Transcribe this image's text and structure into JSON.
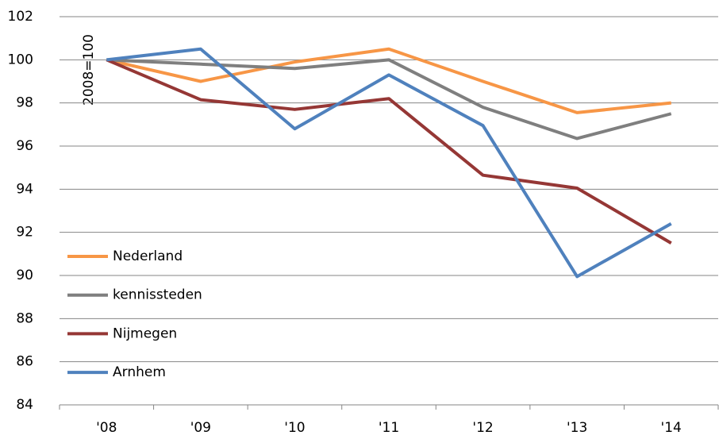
{
  "chart_data": {
    "type": "line",
    "annotation": "2008=100",
    "categories": [
      "'08",
      "'09",
      "'10",
      "'11",
      "'12",
      "'13",
      "'14"
    ],
    "series": [
      {
        "name": "Nederland",
        "color": "#f79646",
        "values": [
          100,
          99.0,
          99.9,
          100.5,
          99.0,
          97.55,
          98.0
        ]
      },
      {
        "name": "kennissteden",
        "color": "#7f7f7f",
        "values": [
          100,
          99.8,
          99.6,
          100.0,
          97.8,
          96.35,
          97.5
        ]
      },
      {
        "name": "Nijmegen",
        "color": "#953735",
        "values": [
          100,
          98.15,
          97.7,
          98.2,
          94.65,
          94.05,
          91.5
        ]
      },
      {
        "name": "Arnhem",
        "color": "#4f81bd",
        "values": [
          100,
          100.5,
          96.8,
          99.3,
          96.95,
          89.95,
          92.4
        ]
      }
    ],
    "ylim": [
      84,
      102
    ],
    "yticks": [
      84,
      86,
      88,
      90,
      92,
      94,
      96,
      98,
      100,
      102
    ],
    "grid": true,
    "legend_position": "left"
  }
}
